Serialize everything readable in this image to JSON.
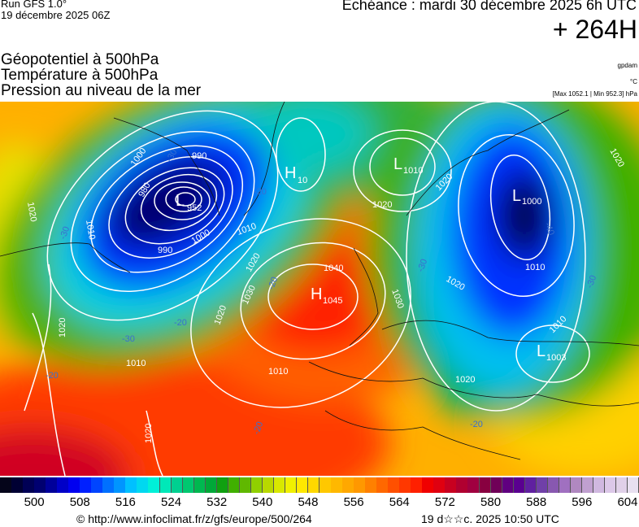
{
  "header": {
    "run": "Run GFS 1.0°",
    "run_date": "19 décembre 2025 06Z",
    "echeance": "Echéance : mardi 30 décembre 2025 6h UTC",
    "horizon": "+ 264H",
    "titles": [
      "Géopotentiel à 500hPa",
      "Température à 500hPa",
      "Pression au niveau de la mer"
    ],
    "units": [
      "gpdam",
      "°C",
      "[Max 1052.1 | Min 952.3] hPa"
    ]
  },
  "map": {
    "pressure_centers": [
      {
        "type": "L",
        "value": "952"
      },
      {
        "type": "H",
        "value": "10"
      },
      {
        "type": "L",
        "value": "1010"
      },
      {
        "type": "L",
        "value": "1000"
      },
      {
        "type": "H",
        "value": "1045"
      },
      {
        "type": "L",
        "value": "1003"
      }
    ],
    "isobar_labels": [
      "1000",
      "990",
      "980",
      "990",
      "1000",
      "1010",
      "1010",
      "1020",
      "1020",
      "1030",
      "1040",
      "1020",
      "1020",
      "1010",
      "1020",
      "1020",
      "1010",
      "1010",
      "1020",
      "1030",
      "1020",
      "1010",
      "1020",
      "1020"
    ],
    "temperature_labels": [
      "-30",
      "-30",
      "-30",
      "-20",
      "-20",
      "-20",
      "-20",
      "-30",
      "-40",
      "-20",
      "-20",
      "-30"
    ]
  },
  "colorbar": {
    "unit": "gpdam",
    "min": 494,
    "step": 2,
    "ticks": [
      "500",
      "508",
      "516",
      "524",
      "532",
      "540",
      "548",
      "556",
      "564",
      "572",
      "580",
      "588",
      "596",
      "604"
    ],
    "colors": [
      "#05051a",
      "#000033",
      "#000055",
      "#000070",
      "#00009a",
      "#0000c8",
      "#0000f0",
      "#0020ff",
      "#0045ff",
      "#0070ff",
      "#0095ff",
      "#00c0ff",
      "#00d8f0",
      "#00f0d8",
      "#00e8b8",
      "#00d090",
      "#00c870",
      "#00b850",
      "#00a838",
      "#10a010",
      "#40b000",
      "#60b800",
      "#90d000",
      "#b8d800",
      "#d8e800",
      "#f0f000",
      "#ffe800",
      "#ffd800",
      "#ffc800",
      "#ffb800",
      "#ffa800",
      "#ff9800",
      "#ff8000",
      "#ff6800",
      "#ff5000",
      "#ff3800",
      "#ff2000",
      "#f00000",
      "#e00010",
      "#c80020",
      "#b00030",
      "#a00040",
      "#880040",
      "#700058",
      "#600080",
      "#5a0090",
      "#6020a0",
      "#7040a8",
      "#8858b0",
      "#a070c0",
      "#b088c0",
      "#c0a0d0",
      "#d0b8e0",
      "#dcc8e8",
      "#e0d0e8",
      "#e8e0f0"
    ]
  },
  "footer": {
    "credit": "© http://www.infoclimat.fr/z/gfs/europe/500/264",
    "timestamp": "19 d☆☆c. 2025 10:50 UTC"
  }
}
